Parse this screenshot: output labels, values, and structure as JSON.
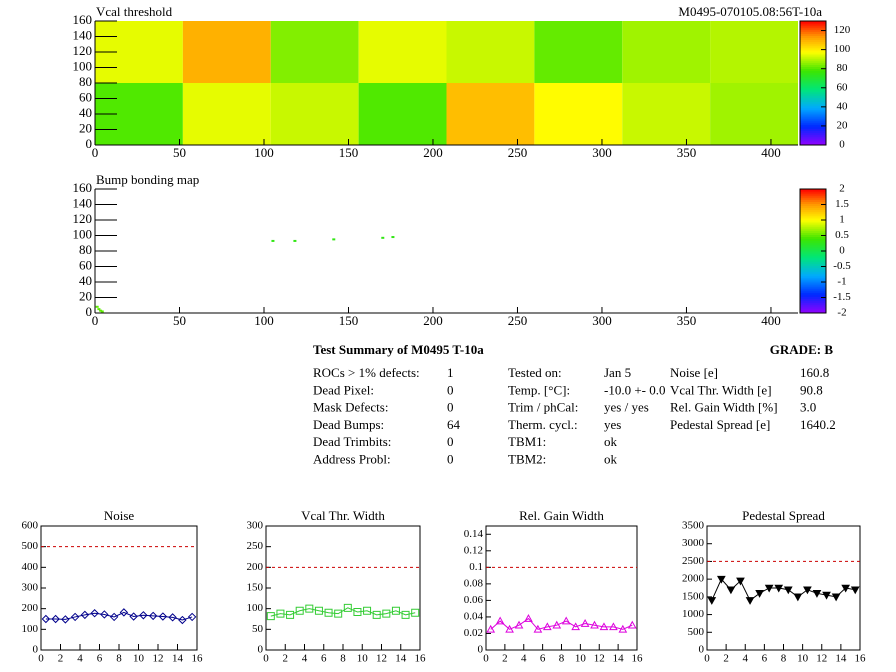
{
  "header": "M0495-070105.08:56T-10a",
  "chart_data": [
    {
      "type": "heatmap",
      "title": "Vcal threshold",
      "xbins": [
        0,
        52,
        104,
        156,
        208,
        260,
        312,
        364,
        416
      ],
      "ybins": [
        0,
        80,
        160
      ],
      "z": [
        [
          80,
          95,
          92,
          80,
          108,
          98,
          92,
          88
        ],
        [
          95,
          110,
          85,
          95,
          92,
          82,
          88,
          90
        ]
      ],
      "xlim": [
        0,
        416
      ],
      "ylim": [
        0,
        160
      ],
      "xticks": [
        0,
        50,
        100,
        150,
        200,
        250,
        300,
        350,
        400
      ],
      "yticks": [
        0,
        20,
        40,
        60,
        80,
        100,
        120,
        140,
        160
      ],
      "zlim": [
        0,
        130
      ],
      "zticks": [
        0,
        20,
        40,
        60,
        80,
        100,
        120
      ]
    },
    {
      "type": "pixelmap",
      "title": "Bump bonding map",
      "x": [
        1,
        2,
        3,
        4,
        105,
        118,
        141,
        170,
        176
      ],
      "y": [
        8,
        5,
        3,
        2,
        93,
        93,
        95,
        97,
        98
      ],
      "z": [
        0.5,
        0.5,
        0.5,
        0.5,
        0.3,
        0.3,
        0.3,
        0.3,
        0.3
      ],
      "xlim": [
        0,
        416
      ],
      "ylim": [
        0,
        160
      ],
      "xticks": [
        0,
        50,
        100,
        150,
        200,
        250,
        300,
        350,
        400
      ],
      "yticks": [
        0,
        20,
        40,
        60,
        80,
        100,
        120,
        140,
        160
      ],
      "zlim": [
        -2,
        2
      ],
      "zticks": [
        -2,
        -1.5,
        -1,
        -0.5,
        0,
        0.5,
        1,
        1.5,
        2
      ]
    },
    {
      "type": "line",
      "title": "Noise",
      "color": "#00008b",
      "marker": "diamond",
      "x": [
        0.5,
        1.5,
        2.5,
        3.5,
        4.5,
        5.5,
        6.5,
        7.5,
        8.5,
        9.5,
        10.5,
        11.5,
        12.5,
        13.5,
        14.5,
        15.5
      ],
      "values": [
        150,
        150,
        148,
        160,
        170,
        178,
        172,
        160,
        182,
        162,
        168,
        165,
        162,
        158,
        145,
        160
      ],
      "threshold": 500,
      "xlim": [
        0,
        16
      ],
      "xticks": [
        0,
        2,
        4,
        6,
        8,
        10,
        12,
        14,
        16
      ],
      "ylim": [
        0,
        600
      ],
      "yticks": [
        0,
        100,
        200,
        300,
        400,
        500,
        600
      ]
    },
    {
      "type": "line",
      "title": "Vcal Thr. Width",
      "color": "#33cc33",
      "marker": "square",
      "x": [
        0.5,
        1.5,
        2.5,
        3.5,
        4.5,
        5.5,
        6.5,
        7.5,
        8.5,
        9.5,
        10.5,
        11.5,
        12.5,
        13.5,
        14.5,
        15.5
      ],
      "values": [
        82,
        88,
        85,
        95,
        100,
        95,
        90,
        88,
        102,
        92,
        95,
        85,
        88,
        95,
        85,
        90
      ],
      "threshold": 200,
      "xlim": [
        0,
        16
      ],
      "xticks": [
        0,
        2,
        4,
        6,
        8,
        10,
        12,
        14,
        16
      ],
      "ylim": [
        0,
        300
      ],
      "yticks": [
        0,
        50,
        100,
        150,
        200,
        250,
        300
      ]
    },
    {
      "type": "line",
      "title": "Rel. Gain Width",
      "color": "#dd00dd",
      "marker": "triangle",
      "x": [
        0.5,
        1.5,
        2.5,
        3.5,
        4.5,
        5.5,
        6.5,
        7.5,
        8.5,
        9.5,
        10.5,
        11.5,
        12.5,
        13.5,
        14.5,
        15.5
      ],
      "values": [
        0.025,
        0.035,
        0.025,
        0.03,
        0.038,
        0.025,
        0.028,
        0.03,
        0.035,
        0.028,
        0.032,
        0.03,
        0.028,
        0.028,
        0.025,
        0.03
      ],
      "threshold": 0.1,
      "xlim": [
        0,
        16
      ],
      "xticks": [
        0,
        2,
        4,
        6,
        8,
        10,
        12,
        14,
        16
      ],
      "ylim": [
        0,
        0.15
      ],
      "yticks": [
        0,
        0.02,
        0.04,
        0.06,
        0.08,
        0.1,
        0.12,
        0.14
      ]
    },
    {
      "type": "line",
      "title": "Pedestal Spread",
      "color": "#000000",
      "marker": "triangle-down",
      "x": [
        0.5,
        1.5,
        2.5,
        3.5,
        4.5,
        5.5,
        6.5,
        7.5,
        8.5,
        9.5,
        10.5,
        11.5,
        12.5,
        13.5,
        14.5,
        15.5
      ],
      "values": [
        1400,
        2000,
        1700,
        1950,
        1400,
        1600,
        1750,
        1750,
        1700,
        1500,
        1700,
        1600,
        1550,
        1500,
        1750,
        1700
      ],
      "threshold": 2500,
      "xlim": [
        0,
        16
      ],
      "xticks": [
        0,
        2,
        4,
        6,
        8,
        10,
        12,
        14,
        16
      ],
      "ylim": [
        0,
        3500
      ],
      "yticks": [
        0,
        500,
        1000,
        1500,
        2000,
        2500,
        3000,
        3500
      ]
    }
  ],
  "summary": {
    "title": "Test Summary of M0495     T-10a",
    "grade": "GRADE:  B",
    "columns": [
      [
        [
          "ROCs > 1% defects:",
          "1"
        ],
        [
          "Dead Pixel:",
          "0"
        ],
        [
          "Mask Defects:",
          "0"
        ],
        [
          "Dead Bumps:",
          "64"
        ],
        [
          "Dead Trimbits:",
          "0"
        ],
        [
          "Address Probl:",
          "0"
        ]
      ],
      [
        [
          "Tested on:",
          "Jan 5"
        ],
        [
          "Temp. [°C]:",
          "-10.0 +- 0.0"
        ],
        [
          "Trim / phCal:",
          "yes / yes"
        ],
        [
          "Therm. cycl.:",
          "yes"
        ],
        [
          "TBM1:",
          "ok"
        ],
        [
          "TBM2:",
          "ok"
        ]
      ],
      [
        [
          "Noise [e]",
          "160.8"
        ],
        [
          "Vcal Thr. Width [e]",
          "90.8"
        ],
        [
          "Rel. Gain Width [%]",
          "3.0"
        ],
        [
          "Pedestal Spread [e]",
          "1640.2"
        ]
      ]
    ]
  }
}
